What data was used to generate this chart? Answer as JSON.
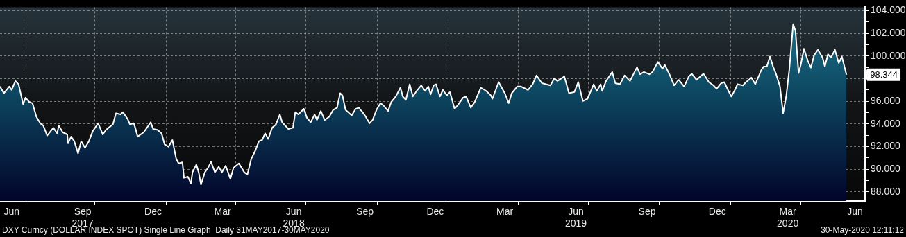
{
  "chart_data": {
    "type": "area",
    "x": [
      "2017-05-31",
      "2017-06-05",
      "2017-06-12",
      "2017-06-15",
      "2017-06-20",
      "2017-06-24",
      "2017-06-30",
      "2017-07-03",
      "2017-07-08",
      "2017-07-12",
      "2017-07-17",
      "2017-07-22",
      "2017-07-26",
      "2017-07-31",
      "2017-08-08",
      "2017-08-13",
      "2017-08-15",
      "2017-08-20",
      "2017-08-26",
      "2017-08-27",
      "2017-08-31",
      "2017-09-04",
      "2017-09-09",
      "2017-09-13",
      "2017-09-18",
      "2017-09-23",
      "2017-09-28",
      "2017-10-05",
      "2017-10-11",
      "2017-10-15",
      "2017-10-22",
      "2017-10-24",
      "2017-10-28",
      "2017-11-03",
      "2017-11-06",
      "2017-11-12",
      "2017-11-15",
      "2017-11-20",
      "2017-11-22",
      "2017-11-25",
      "2017-12-03",
      "2017-12-12",
      "2017-12-15",
      "2017-12-21",
      "2017-12-26",
      "2017-12-30",
      "2018-01-04",
      "2018-01-09",
      "2018-01-14",
      "2018-01-17",
      "2018-01-22",
      "2018-01-24",
      "2018-01-29",
      "2018-02-02",
      "2018-02-04",
      "2018-02-09",
      "2018-02-12",
      "2018-02-15",
      "2018-02-20",
      "2018-02-24",
      "2018-02-28",
      "2018-03-05",
      "2018-03-10",
      "2018-03-14",
      "2018-03-19",
      "2018-03-25",
      "2018-03-29",
      "2018-04-05",
      "2018-04-12",
      "2018-04-16",
      "2018-04-21",
      "2018-04-26",
      "2018-05-01",
      "2018-05-05",
      "2018-05-09",
      "2018-05-13",
      "2018-05-18",
      "2018-05-23",
      "2018-05-28",
      "2018-05-31",
      "2018-06-08",
      "2018-06-14",
      "2018-06-17",
      "2018-06-21",
      "2018-06-28",
      "2018-07-02",
      "2018-07-07",
      "2018-07-12",
      "2018-07-15",
      "2018-07-20",
      "2018-07-25",
      "2018-07-31",
      "2018-08-05",
      "2018-08-10",
      "2018-08-14",
      "2018-08-17",
      "2018-08-21",
      "2018-08-29",
      "2018-09-03",
      "2018-09-07",
      "2018-09-12",
      "2018-09-16",
      "2018-09-21",
      "2018-09-25",
      "2018-09-30",
      "2018-10-05",
      "2018-10-09",
      "2018-10-15",
      "2018-10-19",
      "2018-10-25",
      "2018-10-31",
      "2018-11-03",
      "2018-11-07",
      "2018-11-12",
      "2018-11-16",
      "2018-11-21",
      "2018-11-27",
      "2018-12-02",
      "2018-12-06",
      "2018-12-09",
      "2018-12-13",
      "2018-12-16",
      "2018-12-21",
      "2018-12-25",
      "2018-12-30",
      "2019-01-03",
      "2019-01-09",
      "2019-01-14",
      "2019-01-20",
      "2019-01-24",
      "2019-01-30",
      "2019-02-04",
      "2019-02-12",
      "2019-02-19",
      "2019-02-25",
      "2019-02-27",
      "2019-03-07",
      "2019-03-15",
      "2019-03-20",
      "2019-03-24",
      "2019-03-31",
      "2019-04-05",
      "2019-04-14",
      "2019-04-20",
      "2019-04-25",
      "2019-05-02",
      "2019-05-13",
      "2019-05-18",
      "2019-05-22",
      "2019-05-31",
      "2019-06-06",
      "2019-06-13",
      "2019-06-18",
      "2019-06-24",
      "2019-06-30",
      "2019-07-08",
      "2019-07-12",
      "2019-07-17",
      "2019-07-19",
      "2019-07-24",
      "2019-07-27",
      "2019-08-01",
      "2019-08-05",
      "2019-08-11",
      "2019-08-17",
      "2019-08-24",
      "2019-09-02",
      "2019-09-06",
      "2019-09-11",
      "2019-09-18",
      "2019-09-22",
      "2019-09-29",
      "2019-10-05",
      "2019-10-08",
      "2019-10-14",
      "2019-10-20",
      "2019-10-26",
      "2019-11-02",
      "2019-11-08",
      "2019-11-12",
      "2019-11-18",
      "2019-11-27",
      "2019-12-04",
      "2019-12-10",
      "2019-12-14",
      "2019-12-20",
      "2019-12-24",
      "2019-12-28",
      "2020-01-02",
      "2020-01-06",
      "2020-01-10",
      "2020-01-17",
      "2020-01-21",
      "2020-01-28",
      "2020-02-02",
      "2020-02-10",
      "2020-02-13",
      "2020-02-17",
      "2020-02-21",
      "2020-02-25",
      "2020-02-29",
      "2020-03-05",
      "2020-03-09",
      "2020-03-13",
      "2020-03-17",
      "2020-03-22",
      "2020-03-25",
      "2020-03-29",
      "2020-04-01",
      "2020-04-05",
      "2020-04-10",
      "2020-04-14",
      "2020-04-18",
      "2020-04-23",
      "2020-04-29",
      "2020-05-02",
      "2020-05-06",
      "2020-05-10",
      "2020-05-15",
      "2020-05-20",
      "2020-05-24",
      "2020-05-30"
    ],
    "series": [
      {
        "color": "#ffffff",
        "values": [
          97.3,
          96.71,
          97.3,
          97.0,
          97.79,
          97.5,
          95.73,
          96.32,
          95.92,
          95.83,
          94.65,
          94.06,
          93.86,
          92.97,
          93.66,
          93.17,
          93.86,
          93.27,
          93.07,
          92.29,
          92.88,
          92.48,
          91.4,
          92.48,
          91.89,
          92.48,
          93.37,
          94.06,
          93.07,
          93.47,
          93.86,
          93.96,
          94.94,
          94.84,
          95.04,
          94.45,
          93.96,
          94.06,
          93.66,
          92.88,
          93.27,
          94.15,
          93.56,
          93.47,
          93.17,
          92.19,
          91.99,
          92.58,
          90.91,
          90.52,
          90.61,
          89.24,
          89.34,
          88.75,
          89.73,
          90.42,
          89.73,
          88.65,
          89.73,
          90.12,
          90.65,
          89.73,
          90.22,
          89.73,
          90.32,
          89.14,
          90.12,
          90.52,
          89.73,
          89.53,
          90.91,
          91.6,
          92.48,
          92.58,
          93.17,
          92.68,
          93.66,
          93.96,
          94.84,
          94.15,
          93.56,
          93.66,
          95.04,
          94.84,
          95.33,
          94.55,
          94.15,
          94.84,
          94.35,
          95.14,
          94.35,
          94.65,
          95.24,
          95.43,
          96.71,
          96.51,
          95.24,
          94.75,
          95.33,
          95.43,
          95.04,
          94.65,
          94.06,
          94.35,
          95.24,
          95.83,
          95.63,
          95.14,
          95.92,
          96.42,
          97.2,
          96.42,
          96.12,
          97.5,
          96.42,
          96.91,
          97.4,
          96.91,
          97.3,
          96.61,
          97.4,
          97.5,
          96.42,
          97.0,
          96.51,
          96.81,
          95.33,
          95.73,
          96.32,
          96.42,
          95.43,
          95.92,
          97.2,
          96.91,
          96.51,
          96.22,
          97.69,
          96.71,
          95.83,
          96.71,
          97.3,
          97.3,
          97.0,
          97.5,
          98.28,
          97.6,
          97.4,
          98.03,
          97.79,
          98.19,
          96.71,
          96.81,
          97.69,
          96.02,
          96.22,
          97.5,
          96.91,
          97.5,
          96.91,
          97.79,
          98.09,
          98.58,
          97.6,
          97.5,
          98.28,
          97.79,
          99.01,
          98.38,
          98.58,
          98.38,
          98.58,
          99.47,
          98.87,
          99.21,
          98.38,
          97.4,
          97.89,
          97.3,
          98.19,
          98.42,
          97.89,
          98.44,
          97.69,
          97.4,
          97.1,
          97.6,
          97.69,
          97.1,
          96.42,
          96.91,
          97.5,
          97.4,
          97.69,
          98.09,
          97.5,
          98.78,
          99.07,
          99.07,
          99.95,
          99.07,
          98.38,
          97.3,
          94.94,
          96.42,
          98.78,
          102.81,
          102.22,
          98.48,
          99.27,
          100.64,
          99.56,
          98.97,
          100.05,
          100.55,
          99.86,
          99.07,
          100.15,
          99.86,
          100.55,
          99.37,
          99.95,
          98.344
        ]
      }
    ],
    "xlim": [
      "2017-05-31",
      "2020-06-23"
    ],
    "xticks": [
      {
        "value": "2017-06-15",
        "label": "Jun"
      },
      {
        "value": "2017-07-01",
        "label": null
      },
      {
        "value": "2017-09-15",
        "label": "Sep\n2017"
      },
      {
        "value": "2017-10-01",
        "label": null
      },
      {
        "value": "2017-12-15",
        "label": "Dec"
      },
      {
        "value": "2018-01-01",
        "label": null
      },
      {
        "value": "2018-03-15",
        "label": "Mar"
      },
      {
        "value": "2018-04-01",
        "label": null
      },
      {
        "value": "2018-06-15",
        "label": "Jun\n2018"
      },
      {
        "value": "2018-07-01",
        "label": null
      },
      {
        "value": "2018-09-15",
        "label": "Sep"
      },
      {
        "value": "2018-10-01",
        "label": null
      },
      {
        "value": "2018-12-15",
        "label": "Dec"
      },
      {
        "value": "2019-01-01",
        "label": null
      },
      {
        "value": "2019-03-15",
        "label": "Mar"
      },
      {
        "value": "2019-04-01",
        "label": null
      },
      {
        "value": "2019-06-15",
        "label": "Jun\n2019"
      },
      {
        "value": "2019-07-01",
        "label": null
      },
      {
        "value": "2019-09-15",
        "label": "Sep"
      },
      {
        "value": "2019-10-01",
        "label": null
      },
      {
        "value": "2019-12-15",
        "label": "Dec"
      },
      {
        "value": "2020-01-01",
        "label": null
      },
      {
        "value": "2020-03-15",
        "label": "Mar\n2020"
      },
      {
        "value": "2020-04-01",
        "label": null
      },
      {
        "value": "2020-06-10",
        "label": "Jun"
      }
    ],
    "ylim": [
      87.2,
      104.3
    ],
    "yticks": [
      {
        "value": 88,
        "label": "88.000"
      },
      {
        "value": 89,
        "label": null
      },
      {
        "value": 90,
        "label": "90.000"
      },
      {
        "value": 91,
        "label": null
      },
      {
        "value": 92,
        "label": "92.000"
      },
      {
        "value": 93,
        "label": null
      },
      {
        "value": 94,
        "label": "94.000"
      },
      {
        "value": 95,
        "label": null
      },
      {
        "value": 96,
        "label": "96.000"
      },
      {
        "value": 97,
        "label": null
      },
      {
        "value": 98,
        "label": null
      },
      {
        "value": 99,
        "label": null
      },
      {
        "value": 100,
        "label": "100.000"
      },
      {
        "value": 101,
        "label": null
      },
      {
        "value": 102,
        "label": "102.000"
      },
      {
        "value": 103,
        "label": null
      },
      {
        "value": 104,
        "label": "104.000"
      }
    ],
    "grid": true,
    "annotations": [
      {
        "text": "98.344",
        "x": "2020-05-30",
        "y": 98.344
      },
      "DXY Curncy (DOLLAR INDEX SPOT) Single Line Graph  Daily 31MAY2017-30MAY2020",
      "30-May-2020 12:11:12"
    ]
  }
}
